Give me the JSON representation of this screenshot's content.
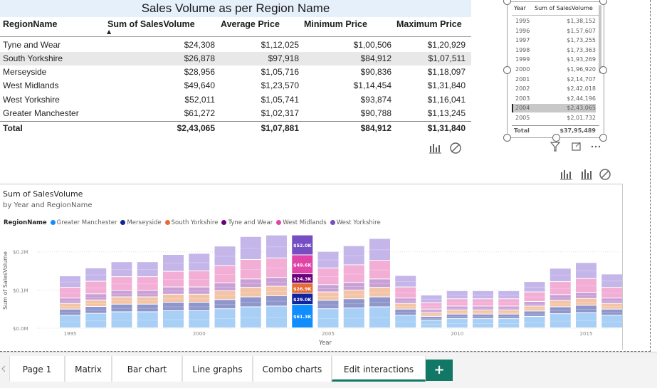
{
  "matrix": {
    "title": "Sales Volume as per Region Name",
    "columns": [
      "RegionName",
      "Sum of SalesVolume",
      "Average Price",
      "Minimum Price",
      "Maximum Price"
    ],
    "rows": [
      [
        "Tyne and Wear",
        "$24,308",
        "$1,12,025",
        "$1,00,506",
        "$1,20,929"
      ],
      [
        "South Yorkshire",
        "$26,878",
        "$97,918",
        "$84,912",
        "$1,07,511"
      ],
      [
        "Merseyside",
        "$28,956",
        "$1,05,716",
        "$90,836",
        "$1,18,097"
      ],
      [
        "West Midlands",
        "$49,640",
        "$1,23,570",
        "$1,14,454",
        "$1,31,840"
      ],
      [
        "West Yorkshire",
        "$52,011",
        "$1,05,741",
        "$93,874",
        "$1,16,041"
      ],
      [
        "Greater Manchester",
        "$61,272",
        "$1,02,317",
        "$90,788",
        "$1,13,245"
      ]
    ],
    "total": [
      "Total",
      "$2,43,065",
      "$1,07,881",
      "$84,912",
      "$1,31,840"
    ]
  },
  "slicer_table": {
    "headers": [
      "Year",
      "Sum of SalesVolume"
    ],
    "rows": [
      [
        "1995",
        "$1,38,152"
      ],
      [
        "1996",
        "$1,57,607"
      ],
      [
        "1997",
        "$1,73,255"
      ],
      [
        "1998",
        "$1,73,363"
      ],
      [
        "1999",
        "$1,93,269"
      ],
      [
        "2000",
        "$1,96,920"
      ],
      [
        "2001",
        "$2,14,707"
      ],
      [
        "2002",
        "$2,42,018"
      ],
      [
        "2003",
        "$2,44,196"
      ],
      [
        "2004",
        "$2,43,065"
      ],
      [
        "2005",
        "$2,01,732"
      ]
    ],
    "total": [
      "Total",
      "$37,95,489"
    ],
    "selected_year": "2004"
  },
  "chart": {
    "title": "Sum of SalesVolume",
    "subtitle": "by Year and RegionName",
    "legend_title": "RegionName",
    "xlabel": "Year",
    "ylabel": "Sum of SalesVolume"
  },
  "chart_data": {
    "type": "bar",
    "stacked": true,
    "title": "Sum of SalesVolume",
    "xlabel": "Year",
    "ylabel": "Sum of SalesVolume",
    "ylim": [
      0,
      260
    ],
    "y_unit": "K",
    "y_ticks": [
      "$0.0M",
      "$0.1M",
      "$0.2M"
    ],
    "x_ticks": [
      "1995",
      "2000",
      "2005",
      "2010",
      "2015"
    ],
    "categories": [
      "1995",
      "1996",
      "1997",
      "1998",
      "1999",
      "2000",
      "2001",
      "2002",
      "2003",
      "2004",
      "2005",
      "2006",
      "2007",
      "2008",
      "2009",
      "2010",
      "2011",
      "2012",
      "2013",
      "2014",
      "2015",
      "2016"
    ],
    "series": [
      {
        "name": "Greater Manchester",
        "color": "#a8cff5",
        "values": [
          33,
          38,
          42,
          42,
          45,
          45,
          50,
          55,
          57,
          61.3,
          50,
          52,
          55,
          33,
          20,
          24,
          24,
          24,
          30,
          37,
          40,
          33
        ]
      },
      {
        "name": "Merseyside",
        "color": "#8e96cb",
        "values": [
          16,
          18,
          20,
          20,
          22,
          22,
          24,
          26,
          27,
          29.0,
          22,
          24,
          26,
          16,
          10,
          12,
          12,
          12,
          14,
          18,
          19,
          16
        ]
      },
      {
        "name": "South Yorkshire",
        "color": "#f3c4a7",
        "values": [
          15,
          17,
          19,
          19,
          21,
          21,
          23,
          25,
          25,
          26.9,
          22,
          23,
          25,
          15,
          10,
          11,
          11,
          11,
          13,
          17,
          18,
          15
        ]
      },
      {
        "name": "Tyne and Wear",
        "color": "#c9a0d6",
        "values": [
          14,
          16,
          17,
          17,
          19,
          19,
          21,
          22,
          23,
          24.3,
          19,
          20,
          22,
          14,
          9,
          10,
          10,
          10,
          12,
          15,
          16,
          14
        ]
      },
      {
        "name": "West Midlands",
        "color": "#f3aed6",
        "values": [
          28,
          33,
          36,
          36,
          41,
          42,
          45,
          51,
          51,
          49.6,
          44,
          46,
          49,
          29,
          17,
          19,
          19,
          19,
          25,
          34,
          36,
          28
        ]
      },
      {
        "name": "West Yorkshire",
        "color": "#c5b6ea",
        "values": [
          30,
          35,
          39,
          39,
          44,
          46,
          51,
          60,
          60,
          52.0,
          43,
          50,
          57,
          30,
          20,
          21,
          21,
          21,
          27,
          35,
          42,
          35
        ]
      }
    ],
    "highlighted_category": "2004",
    "data_labels": [
      "$52.0K",
      "$49.6K",
      "$24.3K",
      "$26.9K",
      "$29.0K",
      "$61.3K"
    ]
  },
  "tabs": [
    "Page 1",
    "Matrix",
    "Bar chart",
    "Line graphs",
    "Combo charts",
    "Edit interactions"
  ],
  "active_tab": "Edit interactions",
  "add_tab_label": "+"
}
